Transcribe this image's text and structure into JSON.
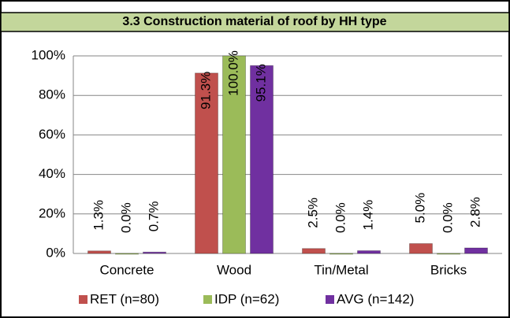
{
  "chart_data": {
    "type": "bar",
    "title": "3.3 Construction material of roof by HH type",
    "categories": [
      "Concrete",
      "Wood",
      "Tin/Metal",
      "Bricks"
    ],
    "series": [
      {
        "name": "RET (n=80)",
        "color": "#c0504d",
        "values": [
          1.3,
          91.3,
          2.5,
          5.0
        ],
        "value_labels": [
          "1.3%",
          "91.3%",
          "2.5%",
          "5.0%"
        ]
      },
      {
        "name": "IDP (n=62)",
        "color": "#9bbb59",
        "values": [
          0.0,
          100.0,
          0.0,
          0.0
        ],
        "value_labels": [
          "0.0%",
          "100.0%",
          "0.0%",
          "0.0%"
        ]
      },
      {
        "name": "AVG (n=142)",
        "color": "#7030a0",
        "values": [
          0.7,
          95.1,
          1.4,
          2.8
        ],
        "value_labels": [
          "0.7%",
          "95.1%",
          "1.4%",
          "2.8%"
        ]
      }
    ],
    "ylim": [
      0,
      100
    ],
    "yticks": [
      {
        "value": 0,
        "label": "0%"
      },
      {
        "value": 20,
        "label": "20%"
      },
      {
        "value": 40,
        "label": "40%"
      },
      {
        "value": 60,
        "label": "60%"
      },
      {
        "value": 80,
        "label": "80%"
      },
      {
        "value": 100,
        "label": "100%"
      }
    ],
    "grid": true,
    "legend": "bottom"
  }
}
